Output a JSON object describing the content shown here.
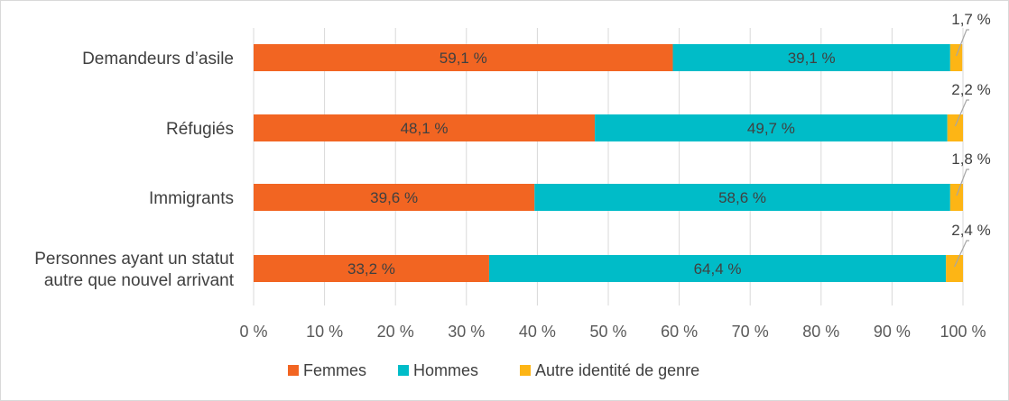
{
  "chart_data": {
    "type": "bar",
    "orientation": "horizontal",
    "stacked": true,
    "title": "",
    "xlabel": "",
    "ylabel": "",
    "xlim": [
      0,
      100
    ],
    "grid": true,
    "legend_position": "bottom",
    "categories": [
      [
        "Demandeurs d’asile"
      ],
      [
        "Réfugiés"
      ],
      [
        "Immigrants"
      ],
      [
        "Personnes ayant un statut",
        "autre que nouvel arrivant"
      ]
    ],
    "series": [
      {
        "name": "Femmes",
        "color": "#f26522",
        "values": [
          59.1,
          48.1,
          39.6,
          33.2
        ],
        "labels": [
          "59,1 %",
          "48,1 %",
          "39,6 %",
          "33,2 %"
        ]
      },
      {
        "name": "Hommes",
        "color": "#00bcc8",
        "values": [
          39.1,
          49.7,
          58.6,
          64.4
        ],
        "labels": [
          "39,1 %",
          "49,7 %",
          "58,6 %",
          "64,4 %"
        ]
      },
      {
        "name": "Autre identité de genre",
        "color": "#fdb515",
        "values": [
          1.7,
          2.2,
          1.8,
          2.4
        ],
        "labels": [
          "1,7 %",
          "2,2 %",
          "1,8 %",
          "2,4 %"
        ]
      }
    ],
    "x_ticks": [
      0,
      10,
      20,
      30,
      40,
      50,
      60,
      70,
      80,
      90,
      100
    ],
    "x_tick_labels": [
      "0 %",
      "10 %",
      "20 %",
      "30 %",
      "40 %",
      "50 %",
      "60 %",
      "70 %",
      "80 %",
      "90 %",
      "100 %"
    ]
  }
}
